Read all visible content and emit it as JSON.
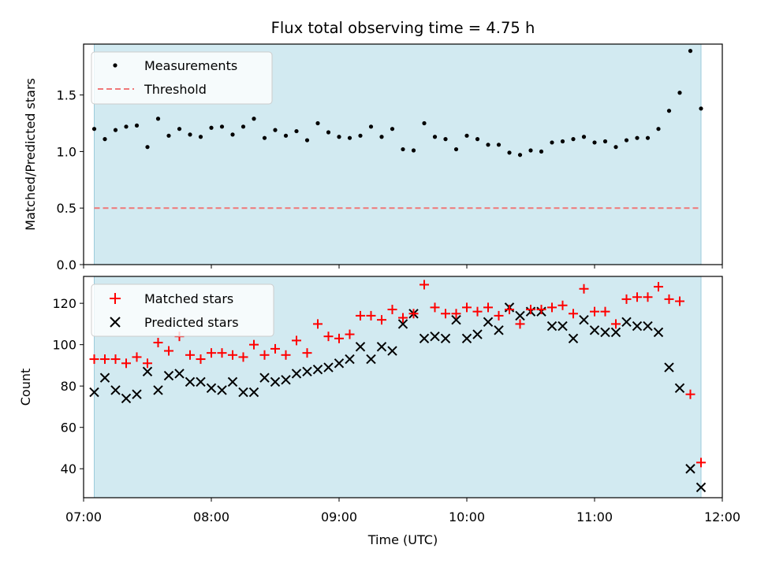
{
  "chart_data": [
    {
      "type": "scatter",
      "title": "Flux total observing time = 4.75 h",
      "ylabel": "Matched/Predicted stars",
      "xlabel": "",
      "xlim": [
        "07:00",
        "12:00"
      ],
      "ylim": [
        0,
        1.95
      ],
      "yticks": [
        0.0,
        0.5,
        1.0,
        1.5
      ],
      "ytick_labels": [
        "0.0",
        "0.5",
        "1.0",
        "1.5"
      ],
      "shaded_span": {
        "start": "07:05",
        "end": "11:50",
        "color": "#add8e6"
      },
      "legend_location": "upper left",
      "series": [
        {
          "name": "Measurements",
          "marker": "dot",
          "color": "#000000",
          "points": [
            [
              "07:05",
              1.2
            ],
            [
              "07:10",
              1.11
            ],
            [
              "07:15",
              1.19
            ],
            [
              "07:20",
              1.22
            ],
            [
              "07:25",
              1.23
            ],
            [
              "07:30",
              1.04
            ],
            [
              "07:35",
              1.29
            ],
            [
              "07:40",
              1.14
            ],
            [
              "07:45",
              1.2
            ],
            [
              "07:50",
              1.15
            ],
            [
              "07:55",
              1.13
            ],
            [
              "08:00",
              1.21
            ],
            [
              "08:05",
              1.22
            ],
            [
              "08:10",
              1.15
            ],
            [
              "08:15",
              1.22
            ],
            [
              "08:20",
              1.29
            ],
            [
              "08:25",
              1.12
            ],
            [
              "08:30",
              1.19
            ],
            [
              "08:35",
              1.14
            ],
            [
              "08:40",
              1.18
            ],
            [
              "08:45",
              1.1
            ],
            [
              "08:50",
              1.25
            ],
            [
              "08:55",
              1.17
            ],
            [
              "09:00",
              1.13
            ],
            [
              "09:05",
              1.12
            ],
            [
              "09:10",
              1.14
            ],
            [
              "09:15",
              1.22
            ],
            [
              "09:20",
              1.13
            ],
            [
              "09:25",
              1.2
            ],
            [
              "09:30",
              1.02
            ],
            [
              "09:35",
              1.01
            ],
            [
              "09:40",
              1.25
            ],
            [
              "09:45",
              1.13
            ],
            [
              "09:50",
              1.11
            ],
            [
              "09:55",
              1.02
            ],
            [
              "10:00",
              1.14
            ],
            [
              "10:05",
              1.11
            ],
            [
              "10:10",
              1.06
            ],
            [
              "10:15",
              1.06
            ],
            [
              "10:20",
              0.99
            ],
            [
              "10:25",
              0.97
            ],
            [
              "10:30",
              1.01
            ],
            [
              "10:35",
              1.0
            ],
            [
              "10:40",
              1.08
            ],
            [
              "10:45",
              1.09
            ],
            [
              "10:50",
              1.11
            ],
            [
              "10:55",
              1.13
            ],
            [
              "11:00",
              1.08
            ],
            [
              "11:05",
              1.09
            ],
            [
              "11:10",
              1.04
            ],
            [
              "11:15",
              1.1
            ],
            [
              "11:20",
              1.12
            ],
            [
              "11:25",
              1.12
            ],
            [
              "11:30",
              1.2
            ],
            [
              "11:35",
              1.36
            ],
            [
              "11:40",
              1.52
            ],
            [
              "11:45",
              1.89
            ],
            [
              "11:50",
              1.38
            ]
          ]
        },
        {
          "name": "Threshold",
          "marker": "dashed-line",
          "color": "#f07878",
          "points": [
            [
              "07:05",
              0.5
            ],
            [
              "11:50",
              0.5
            ]
          ]
        }
      ]
    },
    {
      "type": "scatter",
      "title": "",
      "ylabel": "Count",
      "xlabel": "Time (UTC)",
      "xlim": [
        "07:00",
        "12:00"
      ],
      "xticks": [
        "07:00",
        "08:00",
        "09:00",
        "10:00",
        "11:00",
        "12:00"
      ],
      "ylim": [
        26,
        133
      ],
      "yticks": [
        40,
        60,
        80,
        100,
        120
      ],
      "shaded_span": {
        "start": "07:05",
        "end": "11:50",
        "color": "#add8e6"
      },
      "legend_location": "upper left",
      "series": [
        {
          "name": "Matched stars",
          "marker": "plus",
          "color": "#ff0000",
          "points": [
            [
              "07:05",
              93
            ],
            [
              "07:10",
              93
            ],
            [
              "07:15",
              93
            ],
            [
              "07:20",
              91
            ],
            [
              "07:25",
              94
            ],
            [
              "07:30",
              91
            ],
            [
              "07:35",
              101
            ],
            [
              "07:40",
              97
            ],
            [
              "07:45",
              104
            ],
            [
              "07:50",
              95
            ],
            [
              "07:55",
              93
            ],
            [
              "08:00",
              96
            ],
            [
              "08:05",
              96
            ],
            [
              "08:10",
              95
            ],
            [
              "08:15",
              94
            ],
            [
              "08:20",
              100
            ],
            [
              "08:25",
              95
            ],
            [
              "08:30",
              98
            ],
            [
              "08:35",
              95
            ],
            [
              "08:40",
              102
            ],
            [
              "08:45",
              96
            ],
            [
              "08:50",
              110
            ],
            [
              "08:55",
              104
            ],
            [
              "09:00",
              103
            ],
            [
              "09:05",
              105
            ],
            [
              "09:10",
              114
            ],
            [
              "09:15",
              114
            ],
            [
              "09:20",
              112
            ],
            [
              "09:25",
              117
            ],
            [
              "09:30",
              113
            ],
            [
              "09:35",
              115
            ],
            [
              "09:40",
              129
            ],
            [
              "09:45",
              118
            ],
            [
              "09:50",
              115
            ],
            [
              "09:55",
              115
            ],
            [
              "10:00",
              118
            ],
            [
              "10:05",
              116
            ],
            [
              "10:10",
              118
            ],
            [
              "10:15",
              114
            ],
            [
              "10:20",
              117
            ],
            [
              "10:25",
              110
            ],
            [
              "10:30",
              117
            ],
            [
              "10:35",
              117
            ],
            [
              "10:40",
              118
            ],
            [
              "10:45",
              119
            ],
            [
              "10:50",
              115
            ],
            [
              "10:55",
              127
            ],
            [
              "11:00",
              116
            ],
            [
              "11:05",
              116
            ],
            [
              "11:10",
              110
            ],
            [
              "11:15",
              122
            ],
            [
              "11:20",
              123
            ],
            [
              "11:25",
              123
            ],
            [
              "11:30",
              128
            ],
            [
              "11:35",
              122
            ],
            [
              "11:40",
              121
            ],
            [
              "11:45",
              76
            ],
            [
              "11:50",
              43
            ]
          ]
        },
        {
          "name": "Predicted stars",
          "marker": "x",
          "color": "#000000",
          "points": [
            [
              "07:05",
              77
            ],
            [
              "07:10",
              84
            ],
            [
              "07:15",
              78
            ],
            [
              "07:20",
              74
            ],
            [
              "07:25",
              76
            ],
            [
              "07:30",
              87
            ],
            [
              "07:35",
              78
            ],
            [
              "07:40",
              85
            ],
            [
              "07:45",
              86
            ],
            [
              "07:50",
              82
            ],
            [
              "07:55",
              82
            ],
            [
              "08:00",
              79
            ],
            [
              "08:05",
              78
            ],
            [
              "08:10",
              82
            ],
            [
              "08:15",
              77
            ],
            [
              "08:20",
              77
            ],
            [
              "08:25",
              84
            ],
            [
              "08:30",
              82
            ],
            [
              "08:35",
              83
            ],
            [
              "08:40",
              86
            ],
            [
              "08:45",
              87
            ],
            [
              "08:50",
              88
            ],
            [
              "08:55",
              89
            ],
            [
              "09:00",
              91
            ],
            [
              "09:05",
              93
            ],
            [
              "09:10",
              99
            ],
            [
              "09:15",
              93
            ],
            [
              "09:20",
              99
            ],
            [
              "09:25",
              97
            ],
            [
              "09:30",
              110
            ],
            [
              "09:35",
              115
            ],
            [
              "09:40",
              103
            ],
            [
              "09:45",
              104
            ],
            [
              "09:50",
              103
            ],
            [
              "09:55",
              112
            ],
            [
              "10:00",
              103
            ],
            [
              "10:05",
              105
            ],
            [
              "10:10",
              111
            ],
            [
              "10:15",
              107
            ],
            [
              "10:20",
              118
            ],
            [
              "10:25",
              114
            ],
            [
              "10:30",
              116
            ],
            [
              "10:35",
              116
            ],
            [
              "10:40",
              109
            ],
            [
              "10:45",
              109
            ],
            [
              "10:50",
              103
            ],
            [
              "10:55",
              112
            ],
            [
              "11:00",
              107
            ],
            [
              "11:05",
              106
            ],
            [
              "11:10",
              106
            ],
            [
              "11:15",
              111
            ],
            [
              "11:20",
              109
            ],
            [
              "11:25",
              109
            ],
            [
              "11:30",
              106
            ],
            [
              "11:35",
              89
            ],
            [
              "11:40",
              79
            ],
            [
              "11:45",
              40
            ],
            [
              "11:50",
              31
            ]
          ]
        }
      ]
    }
  ]
}
